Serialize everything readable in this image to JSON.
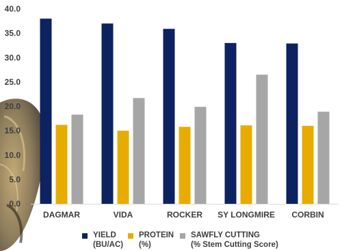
{
  "chart_data": {
    "type": "bar",
    "categories": [
      "DAGMAR",
      "VIDA",
      "ROCKER",
      "SY LONGMIRE",
      "CORBIN"
    ],
    "series": [
      {
        "name": "YIELD (BU/AC)",
        "name_lines": [
          "YIELD",
          "(BU/AC)"
        ],
        "color": "#0c2261",
        "values": [
          38.0,
          37.0,
          35.9,
          33.0,
          32.9
        ]
      },
      {
        "name": "PROTEIN (%)",
        "name_lines": [
          "PROTEIN",
          "(%)"
        ],
        "color": "#e8ac00",
        "values": [
          16.2,
          15.0,
          15.8,
          16.1,
          16.0
        ]
      },
      {
        "name": "SAWFLY CUTTING (% Stem Cutting Score)",
        "name_lines": [
          "SAWFLY CUTTING",
          "(% Stem Cutting Score)"
        ],
        "color": "#a6a6a6",
        "values": [
          18.3,
          21.7,
          19.9,
          26.5,
          18.9
        ]
      }
    ],
    "ylim": [
      0,
      40
    ],
    "yticks": [
      "0.0",
      "5.0",
      "10.0",
      "15.0",
      "20.0",
      "25.0",
      "30.0",
      "35.0",
      "40.0"
    ],
    "grid": false,
    "legend_position": "bottom",
    "title": "",
    "xlabel": "",
    "ylabel": ""
  }
}
